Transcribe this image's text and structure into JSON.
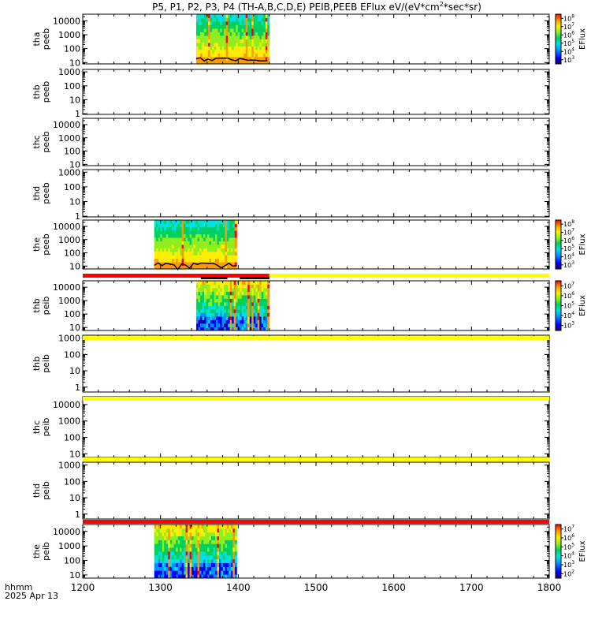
{
  "title": {
    "prefix": "P5, P1, P2, P3, P4 (TH-A,B,C,D,E) PEIB,PEEB EFlux eV/(eV*cm",
    "sup": "2",
    "suffix": "*sec*sr)"
  },
  "footer": {
    "axis_label": "hhmm",
    "date": "2025 Apr 13"
  },
  "colorbar_label": "EFlux",
  "palette": {
    "red": "#ff0000",
    "yellow": "#ffff00",
    "black": "#000000",
    "rainbow": [
      "#1a0066",
      "#0000ff",
      "#0090ff",
      "#00e0e0",
      "#00d060",
      "#90ee20",
      "#ffee00",
      "#ff9900",
      "#ff0000"
    ]
  },
  "chart_data": {
    "type": "heatmap",
    "x_range": [
      1200,
      1800
    ],
    "x_ticks": [
      "1200",
      "1300",
      "1400",
      "1500",
      "1600",
      "1700",
      "1800"
    ],
    "panels": [
      {
        "probe": "tha",
        "product": "peeb",
        "y_scale": "log",
        "y_range": [
          8,
          30000
        ],
        "y_ticks": [
          "10",
          "100",
          "1000",
          "10000"
        ],
        "data_span": [
          1346,
          1440
        ],
        "colorbar": true,
        "colorbar_ticks": [
          "10",
          "10",
          "10",
          "10",
          "10",
          "10"
        ],
        "colorbar_exps": [
          "3",
          "4",
          "5",
          "6",
          "7",
          "8"
        ]
      },
      {
        "probe": "thb",
        "product": "peeb",
        "y_scale": "log",
        "y_range": [
          0.9,
          1500
        ],
        "y_ticks": [
          "1",
          "10",
          "100",
          "1000"
        ],
        "data_span": null,
        "colorbar": false
      },
      {
        "probe": "thc",
        "product": "peeb",
        "y_scale": "log",
        "y_range": [
          8,
          30000
        ],
        "y_ticks": [
          "10",
          "100",
          "1000",
          "10000"
        ],
        "data_span": null,
        "colorbar": false
      },
      {
        "probe": "thd",
        "product": "peeb",
        "y_scale": "log",
        "y_range": [
          0.9,
          1500
        ],
        "y_ticks": [
          "1",
          "10",
          "100",
          "1000"
        ],
        "data_span": null,
        "colorbar": false
      },
      {
        "probe": "the",
        "product": "peeb",
        "y_scale": "log",
        "y_range": [
          6,
          30000
        ],
        "y_ticks": [
          "10",
          "100",
          "1000",
          "10000"
        ],
        "data_span": [
          1292,
          1398
        ],
        "colorbar": true,
        "colorbar_ticks": [
          "10",
          "10",
          "10",
          "10",
          "10",
          "10"
        ],
        "colorbar_exps": [
          "3",
          "4",
          "5",
          "6",
          "7",
          "8"
        ]
      },
      {
        "probe": "thb",
        "product": "peib",
        "y_scale": "log",
        "y_range": [
          6,
          30000
        ],
        "y_ticks": [
          "10",
          "100",
          "1000",
          "10000"
        ],
        "data_span": [
          1346,
          1440
        ],
        "colorbar": true,
        "colorbar_ticks": [
          "10",
          "10",
          "10",
          "10",
          "10"
        ],
        "colorbar_exps": [
          "3",
          "4",
          "5",
          "6",
          "7"
        ]
      },
      {
        "probe": "thb",
        "product": "peib",
        "y_scale": "log",
        "y_range": [
          0.5,
          1500
        ],
        "y_ticks": [
          "1",
          "10",
          "100",
          "1000"
        ],
        "data_span": null,
        "colorbar": false
      },
      {
        "probe": "thc",
        "product": "peib",
        "y_scale": "log",
        "y_range": [
          6,
          30000
        ],
        "y_ticks": [
          "10",
          "100",
          "1000",
          "10000"
        ],
        "data_span": null,
        "colorbar": false
      },
      {
        "probe": "thd",
        "product": "peib",
        "y_scale": "log",
        "y_range": [
          0.5,
          1500
        ],
        "y_ticks": [
          "1",
          "10",
          "100",
          "1000"
        ],
        "data_span": null,
        "colorbar": false
      },
      {
        "probe": "the",
        "product": "peib",
        "y_scale": "log",
        "y_range": [
          6,
          30000
        ],
        "y_ticks": [
          "10",
          "100",
          "1000",
          "10000"
        ],
        "data_span": [
          1292,
          1398
        ],
        "colorbar": true,
        "colorbar_ticks": [
          "10",
          "10",
          "10",
          "10",
          "10",
          "10"
        ],
        "colorbar_exps": [
          "2",
          "3",
          "4",
          "5",
          "6",
          "7"
        ]
      }
    ],
    "status_bars": [
      {
        "after_panel": 4,
        "segments": [
          {
            "from": 1200,
            "to": 1440,
            "color": "red"
          },
          {
            "from": 1440,
            "to": 1800,
            "color": "yellow"
          }
        ],
        "black_segments": [
          {
            "from": 1352,
            "to": 1386
          },
          {
            "from": 1402,
            "to": 1440
          }
        ]
      },
      {
        "after_panel": 5,
        "segments": [
          {
            "from": 1200,
            "to": 1800,
            "color": "yellow"
          }
        ],
        "black_segments": []
      },
      {
        "after_panel": 6,
        "segments": [
          {
            "from": 1200,
            "to": 1800,
            "color": "yellow"
          }
        ],
        "black_segments": []
      },
      {
        "after_panel": 7,
        "segments": [
          {
            "from": 1200,
            "to": 1800,
            "color": "yellow"
          }
        ],
        "black_segments": []
      },
      {
        "after_panel": 8,
        "segments": [
          {
            "from": 1200,
            "to": 1800,
            "color": "red"
          }
        ],
        "black_segments": []
      }
    ]
  }
}
